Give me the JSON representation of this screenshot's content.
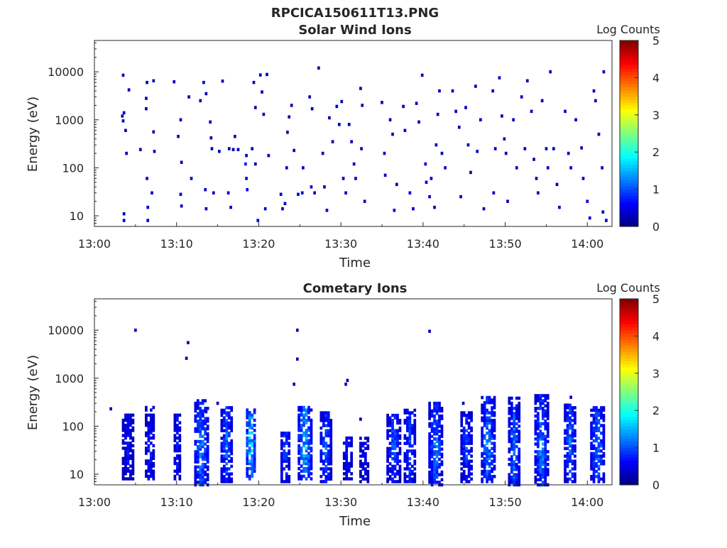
{
  "figure_title": "RPCICA150611T13.PNG",
  "colormap": [
    "#00007f",
    "#0000ff",
    "#007fff",
    "#00ffff",
    "#7fff7f",
    "#ffff00",
    "#ff7f00",
    "#ff0000",
    "#7f0000"
  ],
  "chart_data": [
    {
      "type": "heatmap",
      "title": "Solar Wind Ions",
      "xlabel": "Time",
      "ylabel": "Energy (eV)",
      "x_ticks": [
        "13:00",
        "13:10",
        "13:20",
        "13:30",
        "13:40",
        "13:50",
        "14:00"
      ],
      "x_range_minutes": [
        0,
        63
      ],
      "y_scale": "log",
      "y_ticks": [
        "10",
        "100",
        "1000",
        "10000"
      ],
      "y_range": [
        6,
        45000
      ],
      "colorbar_label": "Log Counts",
      "colorbar_ticks": [
        "0",
        "1",
        "2",
        "3",
        "4",
        "5"
      ],
      "colorbar_range": [
        0,
        5
      ],
      "cells": [
        [
          3.5,
          8500,
          0.3
        ],
        [
          3.4,
          1200,
          0.3
        ],
        [
          3.6,
          1400,
          0.3
        ],
        [
          3.5,
          950,
          0.3
        ],
        [
          3.8,
          600,
          0.3
        ],
        [
          3.9,
          200,
          0.3
        ],
        [
          4.2,
          4200,
          0.3
        ],
        [
          3.6,
          11,
          0.3
        ],
        [
          3.6,
          8,
          0.3
        ],
        [
          5.6,
          240,
          0.3
        ],
        [
          6.3,
          1700,
          0.3
        ],
        [
          6.4,
          6000,
          0.3
        ],
        [
          6.3,
          2800,
          0.3
        ],
        [
          6.4,
          60,
          0.5
        ],
        [
          6.5,
          15,
          0.4
        ],
        [
          6.5,
          8,
          0.4
        ],
        [
          7.2,
          6500,
          0.3
        ],
        [
          7.2,
          560,
          0.3
        ],
        [
          7.0,
          30,
          0.4
        ],
        [
          7.3,
          220,
          0.3
        ],
        [
          9.7,
          6200,
          0.3
        ],
        [
          10.5,
          1000,
          0.3
        ],
        [
          10.2,
          450,
          0.3
        ],
        [
          10.6,
          130,
          0.3
        ],
        [
          10.5,
          28,
          0.4
        ],
        [
          10.6,
          16,
          0.4
        ],
        [
          11.5,
          3000,
          0.3
        ],
        [
          11.8,
          60,
          0.3
        ],
        [
          12.9,
          2500,
          0.3
        ],
        [
          13.3,
          6000,
          0.3
        ],
        [
          13.6,
          3500,
          0.3
        ],
        [
          13.5,
          35,
          0.4
        ],
        [
          13.6,
          14,
          0.3
        ],
        [
          14.1,
          900,
          0.3
        ],
        [
          14.2,
          420,
          0.3
        ],
        [
          14.3,
          250,
          0.3
        ],
        [
          14.5,
          30,
          0.3
        ],
        [
          15.2,
          220,
          0.3
        ],
        [
          15.6,
          6400,
          0.3
        ],
        [
          16.3,
          30,
          0.5
        ],
        [
          16.6,
          15,
          0.4
        ],
        [
          16.4,
          250,
          0.3
        ],
        [
          16.9,
          240,
          0.3
        ],
        [
          17.1,
          450,
          0.3
        ],
        [
          17.5,
          240,
          0.3
        ],
        [
          18.4,
          120,
          0.8
        ],
        [
          18.5,
          60,
          0.6
        ],
        [
          18.6,
          35,
          0.5
        ],
        [
          18.5,
          180,
          0.3
        ],
        [
          19.4,
          6000,
          0.3
        ],
        [
          19.6,
          1800,
          0.3
        ],
        [
          19.2,
          250,
          0.3
        ],
        [
          19.6,
          120,
          0.3
        ],
        [
          19.9,
          8,
          0.5
        ],
        [
          20.2,
          8600,
          0.3
        ],
        [
          20.4,
          3800,
          0.3
        ],
        [
          20.6,
          1300,
          0.3
        ],
        [
          21.0,
          8800,
          0.3
        ],
        [
          21.2,
          180,
          0.3
        ],
        [
          20.8,
          14,
          0.4
        ],
        [
          22.7,
          28,
          0.5
        ],
        [
          22.9,
          14,
          0.4
        ],
        [
          23.2,
          18,
          0.4
        ],
        [
          23.5,
          550,
          0.3
        ],
        [
          23.7,
          1150,
          0.3
        ],
        [
          23.4,
          100,
          0.3
        ],
        [
          24.0,
          2000,
          0.3
        ],
        [
          24.3,
          230,
          0.3
        ],
        [
          24.8,
          28,
          0.5
        ],
        [
          25.3,
          30,
          0.5
        ],
        [
          25.4,
          100,
          0.3
        ],
        [
          26.2,
          3000,
          0.3
        ],
        [
          26.5,
          1700,
          0.3
        ],
        [
          26.4,
          40,
          0.5
        ],
        [
          26.8,
          30,
          0.4
        ],
        [
          27.3,
          12000,
          0.3
        ],
        [
          27.8,
          200,
          0.3
        ],
        [
          28.0,
          40,
          0.3
        ],
        [
          28.3,
          13,
          0.4
        ],
        [
          28.6,
          1100,
          0.3
        ],
        [
          29.0,
          350,
          0.3
        ],
        [
          29.5,
          1900,
          0.3
        ],
        [
          29.8,
          800,
          0.3
        ],
        [
          30.1,
          2400,
          0.3
        ],
        [
          30.3,
          60,
          0.3
        ],
        [
          30.6,
          30,
          0.3
        ],
        [
          31.0,
          800,
          0.3
        ],
        [
          31.3,
          350,
          0.3
        ],
        [
          31.6,
          120,
          0.3
        ],
        [
          31.8,
          60,
          0.3
        ],
        [
          32.4,
          4500,
          0.3
        ],
        [
          32.6,
          2000,
          0.3
        ],
        [
          32.5,
          250,
          0.3
        ],
        [
          32.9,
          20,
          0.3
        ],
        [
          35.0,
          2300,
          0.3
        ],
        [
          35.3,
          200,
          0.3
        ],
        [
          35.4,
          70,
          0.3
        ],
        [
          36.0,
          1000,
          0.3
        ],
        [
          36.3,
          500,
          0.3
        ],
        [
          36.5,
          13,
          0.4
        ],
        [
          36.8,
          45,
          0.3
        ],
        [
          37.6,
          1900,
          0.3
        ],
        [
          37.8,
          600,
          0.3
        ],
        [
          38.4,
          30,
          0.5
        ],
        [
          38.8,
          14,
          0.4
        ],
        [
          39.2,
          2200,
          0.3
        ],
        [
          39.5,
          900,
          0.3
        ],
        [
          39.9,
          8500,
          0.3
        ],
        [
          40.3,
          120,
          0.5
        ],
        [
          40.4,
          50,
          0.4
        ],
        [
          40.8,
          25,
          0.4
        ],
        [
          41.0,
          60,
          0.3
        ],
        [
          41.4,
          15,
          0.3
        ],
        [
          41.6,
          300,
          0.3
        ],
        [
          41.8,
          1300,
          0.3
        ],
        [
          42.0,
          4000,
          0.3
        ],
        [
          42.3,
          200,
          0.3
        ],
        [
          42.7,
          100,
          0.3
        ],
        [
          43.6,
          4000,
          0.3
        ],
        [
          44.0,
          1500,
          0.3
        ],
        [
          44.4,
          700,
          0.3
        ],
        [
          44.6,
          25,
          0.3
        ],
        [
          45.2,
          1800,
          0.3
        ],
        [
          45.5,
          300,
          0.3
        ],
        [
          45.8,
          80,
          0.3
        ],
        [
          46.4,
          5000,
          0.3
        ],
        [
          46.6,
          220,
          0.3
        ],
        [
          47.0,
          1000,
          0.3
        ],
        [
          47.4,
          14,
          0.3
        ],
        [
          48.5,
          4000,
          0.3
        ],
        [
          48.8,
          250,
          0.3
        ],
        [
          48.6,
          30,
          0.3
        ],
        [
          49.3,
          7500,
          0.3
        ],
        [
          49.6,
          1200,
          0.3
        ],
        [
          49.9,
          400,
          0.3
        ],
        [
          50.1,
          200,
          0.3
        ],
        [
          50.3,
          20,
          0.3
        ],
        [
          51.0,
          1000,
          0.3
        ],
        [
          51.4,
          100,
          0.3
        ],
        [
          52.0,
          3000,
          0.3
        ],
        [
          52.4,
          250,
          0.3
        ],
        [
          52.7,
          6500,
          0.3
        ],
        [
          53.2,
          1500,
          0.3
        ],
        [
          53.5,
          150,
          0.3
        ],
        [
          53.8,
          60,
          0.3
        ],
        [
          54.0,
          30,
          0.3
        ],
        [
          54.5,
          2500,
          0.3
        ],
        [
          55.0,
          250,
          0.3
        ],
        [
          55.2,
          100,
          0.3
        ],
        [
          55.5,
          10000,
          0.3
        ],
        [
          55.9,
          250,
          0.3
        ],
        [
          56.3,
          45,
          0.3
        ],
        [
          56.6,
          15,
          0.3
        ],
        [
          57.3,
          1500,
          0.3
        ],
        [
          57.7,
          200,
          0.3
        ],
        [
          58.0,
          100,
          0.3
        ],
        [
          58.6,
          1000,
          0.3
        ],
        [
          59.3,
          260,
          0.3
        ],
        [
          59.5,
          60,
          0.3
        ],
        [
          60.0,
          20,
          0.5
        ],
        [
          60.3,
          9,
          0.5
        ],
        [
          60.8,
          4000,
          0.3
        ],
        [
          61.0,
          2500,
          0.3
        ],
        [
          61.4,
          500,
          0.3
        ],
        [
          61.8,
          100,
          0.3
        ],
        [
          62.0,
          10000,
          0.3
        ],
        [
          62.3,
          8,
          0.4
        ],
        [
          61.9,
          12,
          0.3
        ]
      ]
    },
    {
      "type": "heatmap",
      "title": "Cometary Ions",
      "xlabel": "Time",
      "ylabel": "Energy (eV)",
      "x_ticks": [
        "13:00",
        "13:10",
        "13:20",
        "13:30",
        "13:40",
        "13:50",
        "14:00"
      ],
      "x_range_minutes": [
        0,
        63
      ],
      "y_scale": "log",
      "y_ticks": [
        "10",
        "100",
        "1000",
        "10000"
      ],
      "y_range": [
        6,
        45000
      ],
      "colorbar_label": "Log Counts",
      "colorbar_ticks": [
        "0",
        "1",
        "2",
        "3",
        "4",
        "5"
      ],
      "colorbar_range": [
        0,
        5
      ],
      "bursts": [
        [
          3.5,
          1.3,
          8,
          180,
          0.8
        ],
        [
          6.3,
          0.8,
          8,
          250,
          1.0
        ],
        [
          9.8,
          0.7,
          8,
          180,
          0.9
        ],
        [
          12.3,
          1.4,
          6,
          350,
          1.6
        ],
        [
          15.5,
          1.3,
          7,
          250,
          1.4
        ],
        [
          18.6,
          0.9,
          8,
          220,
          2.2
        ],
        [
          22.8,
          0.9,
          7,
          80,
          1.2
        ],
        [
          24.9,
          1.4,
          8,
          250,
          1.9
        ],
        [
          27.6,
          1.1,
          7,
          200,
          1.3
        ],
        [
          30.4,
          0.8,
          8,
          60,
          0.9
        ],
        [
          32.4,
          1.0,
          7,
          60,
          0.8
        ],
        [
          35.7,
          1.4,
          7,
          180,
          1.2
        ],
        [
          37.8,
          1.3,
          7,
          220,
          1.2
        ],
        [
          40.8,
          1.6,
          6,
          300,
          1.5
        ],
        [
          44.7,
          1.3,
          7,
          200,
          1.2
        ],
        [
          47.2,
          1.4,
          7,
          400,
          1.6
        ],
        [
          50.5,
          1.2,
          6,
          400,
          1.5
        ],
        [
          53.7,
          1.5,
          6,
          450,
          1.6
        ],
        [
          57.3,
          1.2,
          7,
          300,
          1.4
        ],
        [
          60.5,
          1.4,
          7,
          250,
          1.5
        ]
      ],
      "isolated": [
        [
          2.0,
          230,
          0.3
        ],
        [
          5.0,
          10000,
          0.3
        ],
        [
          11.4,
          5500,
          0.3
        ],
        [
          11.2,
          2600,
          0.3
        ],
        [
          24.7,
          10000,
          0.3
        ],
        [
          24.7,
          2500,
          0.3
        ],
        [
          24.3,
          750,
          0.3
        ],
        [
          30.6,
          750,
          0.3
        ],
        [
          30.8,
          900,
          0.3
        ],
        [
          40.8,
          9500,
          0.3
        ],
        [
          58.0,
          400,
          0.3
        ],
        [
          44.9,
          300,
          0.3
        ],
        [
          32.4,
          140,
          0.3
        ],
        [
          13.6,
          200,
          0.3
        ],
        [
          15.0,
          300,
          0.3
        ]
      ]
    }
  ]
}
